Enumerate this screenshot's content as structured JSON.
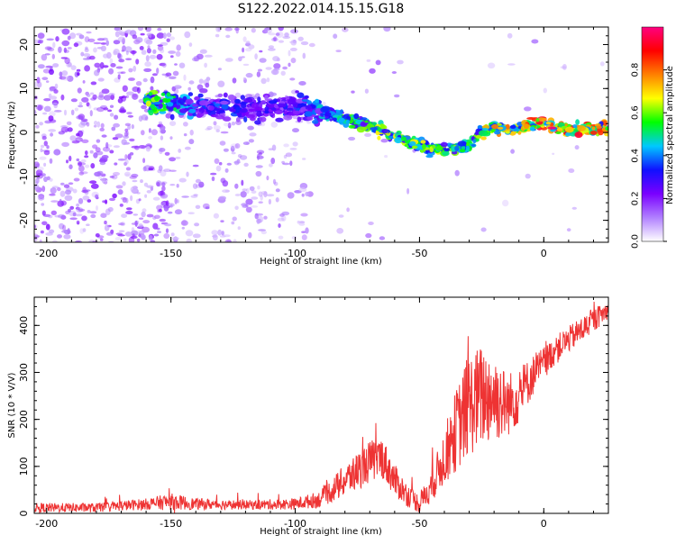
{
  "title": "S122.2022.014.15.15.G18",
  "colors": {
    "snr_line": "#ee3333",
    "ridge_strong": "#00cc66",
    "ridge_weak": "#7a00ff",
    "noise": "#b080ff"
  },
  "chart_data": [
    {
      "type": "heatmap",
      "title": "",
      "xlabel": "Height of straight line (km)",
      "ylabel": "Frequency (Hz)",
      "xlim": [
        -205,
        26
      ],
      "ylim": [
        -25,
        24
      ],
      "xticks": [
        -200,
        -150,
        -100,
        -50,
        0
      ],
      "yticks": [
        -20,
        -10,
        0,
        10,
        20
      ],
      "colorbar": {
        "label": "Normalized spectral amplitude",
        "range": [
          0.0,
          1.0
        ],
        "ticks": [
          "0.0",
          "0.2",
          "0.4",
          "0.6",
          "0.8"
        ],
        "colormap": [
          "#ffffff",
          "#b080ff",
          "#7a00ff",
          "#1010ff",
          "#00c8ff",
          "#00ff00",
          "#ffff00",
          "#ff8000",
          "#ff0000",
          "#ff0080"
        ]
      },
      "ridge": {
        "x": [
          -155,
          -140,
          -120,
          -100,
          -90,
          -80,
          -70,
          -60,
          -50,
          -40,
          -30,
          -25,
          -20,
          -10,
          0,
          10,
          20,
          25
        ],
        "frequency": [
          7,
          6,
          5.5,
          6,
          5,
          3,
          1.5,
          -1,
          -3,
          -4,
          -3,
          0.5,
          1,
          1,
          2,
          0.5,
          1,
          1
        ],
        "amplitude": [
          0.55,
          0.35,
          0.3,
          0.3,
          0.4,
          0.5,
          0.55,
          0.6,
          0.6,
          0.55,
          0.5,
          0.6,
          0.65,
          0.7,
          0.85,
          0.8,
          0.75,
          0.7
        ]
      }
    },
    {
      "type": "line",
      "title": "",
      "xlabel": "Height of straight line (km)",
      "ylabel": "SNR (10 * V/V)",
      "xlim": [
        -205,
        26
      ],
      "ylim": [
        0,
        460
      ],
      "xticks": [
        -200,
        -150,
        -100,
        -50,
        0
      ],
      "yticks": [
        0,
        100,
        200,
        300,
        400
      ],
      "series": [
        {
          "x": [
            -205,
            -180,
            -160,
            -150,
            -140,
            -120,
            -100,
            -90,
            -80,
            -70,
            -65,
            -60,
            -55,
            -50,
            -45,
            -40,
            -35,
            -30,
            -25,
            -20,
            -15,
            -10,
            -5,
            0,
            5,
            10,
            15,
            20,
            25
          ],
          "y": [
            12,
            12,
            20,
            25,
            20,
            18,
            20,
            30,
            70,
            110,
            120,
            70,
            40,
            20,
            60,
            120,
            180,
            230,
            250,
            250,
            230,
            250,
            290,
            320,
            350,
            370,
            390,
            410,
            430
          ],
          "noise": [
            10,
            10,
            12,
            18,
            12,
            10,
            12,
            18,
            35,
            45,
            45,
            35,
            25,
            20,
            35,
            60,
            90,
            110,
            110,
            100,
            70,
            60,
            45,
            35,
            30,
            28,
            28,
            25,
            20
          ]
        }
      ]
    }
  ]
}
